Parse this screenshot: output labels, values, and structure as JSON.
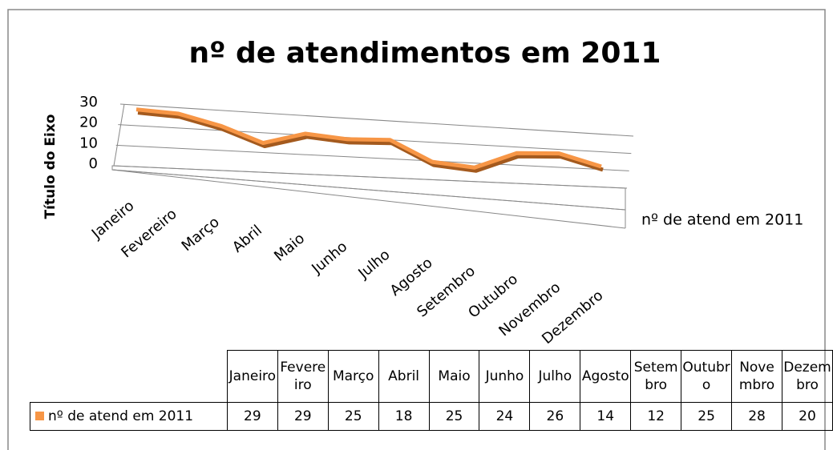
{
  "chart_data": {
    "type": "line",
    "title": "nº de atendimentos em 2011",
    "y_axis_title": "Título do Eixo",
    "categories": [
      "Janeiro",
      "Fevereiro",
      "Março",
      "Abril",
      "Maio",
      "Junho",
      "Julho",
      "Agosto",
      "Setembro",
      "Outubro",
      "Novembro",
      "Dezembro"
    ],
    "series": [
      {
        "name": "nº de atend em 2011",
        "color": "#f79646",
        "values": [
          29,
          29,
          25,
          18,
          25,
          24,
          26,
          14,
          12,
          25,
          28,
          20
        ]
      }
    ],
    "ylim": [
      0,
      30
    ],
    "yticks": [
      0,
      10,
      20,
      30
    ],
    "grid": true,
    "legend": "right",
    "data_table": true
  }
}
